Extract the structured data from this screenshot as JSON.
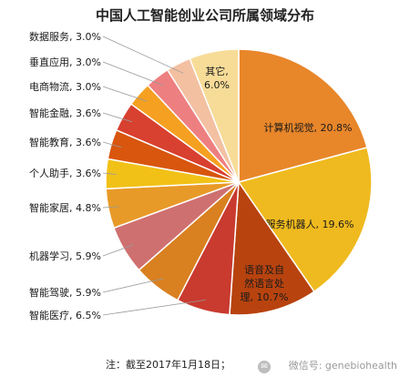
{
  "header": {
    "title": "中国人工智能创业公司所属领域分布"
  },
  "footer": {
    "note": "注：截至2017年1月18日；",
    "watermark": "微信号: genebiohealth",
    "watermark_icon": "wechat-icon"
  },
  "chart_data": {
    "type": "pie",
    "title": "中国人工智能创业公司所属领域分布",
    "unit": "%",
    "slices": [
      {
        "label": "计算机视觉",
        "value": 20.8,
        "display": "计算机视觉, 20.8%",
        "color": "#e8862a"
      },
      {
        "label": "服务机器人",
        "value": 19.6,
        "display": "服务机器人, 19.6%",
        "color": "#efba1f"
      },
      {
        "label": "语音及自然语言处理",
        "value": 10.7,
        "display": "语音及自然语言处理, 10.7%",
        "color": "#b8430f"
      },
      {
        "label": "智能医疗",
        "value": 6.5,
        "display": "智能医疗, 6.5%",
        "color": "#c93a2f"
      },
      {
        "label": "智能驾驶",
        "value": 5.9,
        "display": "智能驾驶, 5.9%",
        "color": "#d98020"
      },
      {
        "label": "机器学习",
        "value": 5.9,
        "display": "机器学习, 5.9%",
        "color": "#cf7070"
      },
      {
        "label": "智能家居",
        "value": 4.8,
        "display": "智能家居, 4.8%",
        "color": "#e89a28"
      },
      {
        "label": "个人助手",
        "value": 3.6,
        "display": "个人助手, 3.6%",
        "color": "#f2c117"
      },
      {
        "label": "智能教育",
        "value": 3.6,
        "display": "智能教育, 3.6%",
        "color": "#d8560e"
      },
      {
        "label": "智能金融",
        "value": 3.6,
        "display": "智能金融, 3.6%",
        "color": "#d84030"
      },
      {
        "label": "电商物流",
        "value": 3.0,
        "display": "电商物流, 3.0%",
        "color": "#f5a021"
      },
      {
        "label": "垂直应用",
        "value": 3.0,
        "display": "垂直应用, 3.0%",
        "color": "#ee7f80"
      },
      {
        "label": "数据服务",
        "value": 3.0,
        "display": "数据服务, 3.0%",
        "color": "#f3c0a2"
      },
      {
        "label": "其它",
        "value": 6.0,
        "display": "其它, 6.0%",
        "color": "#f7dc98"
      }
    ]
  }
}
